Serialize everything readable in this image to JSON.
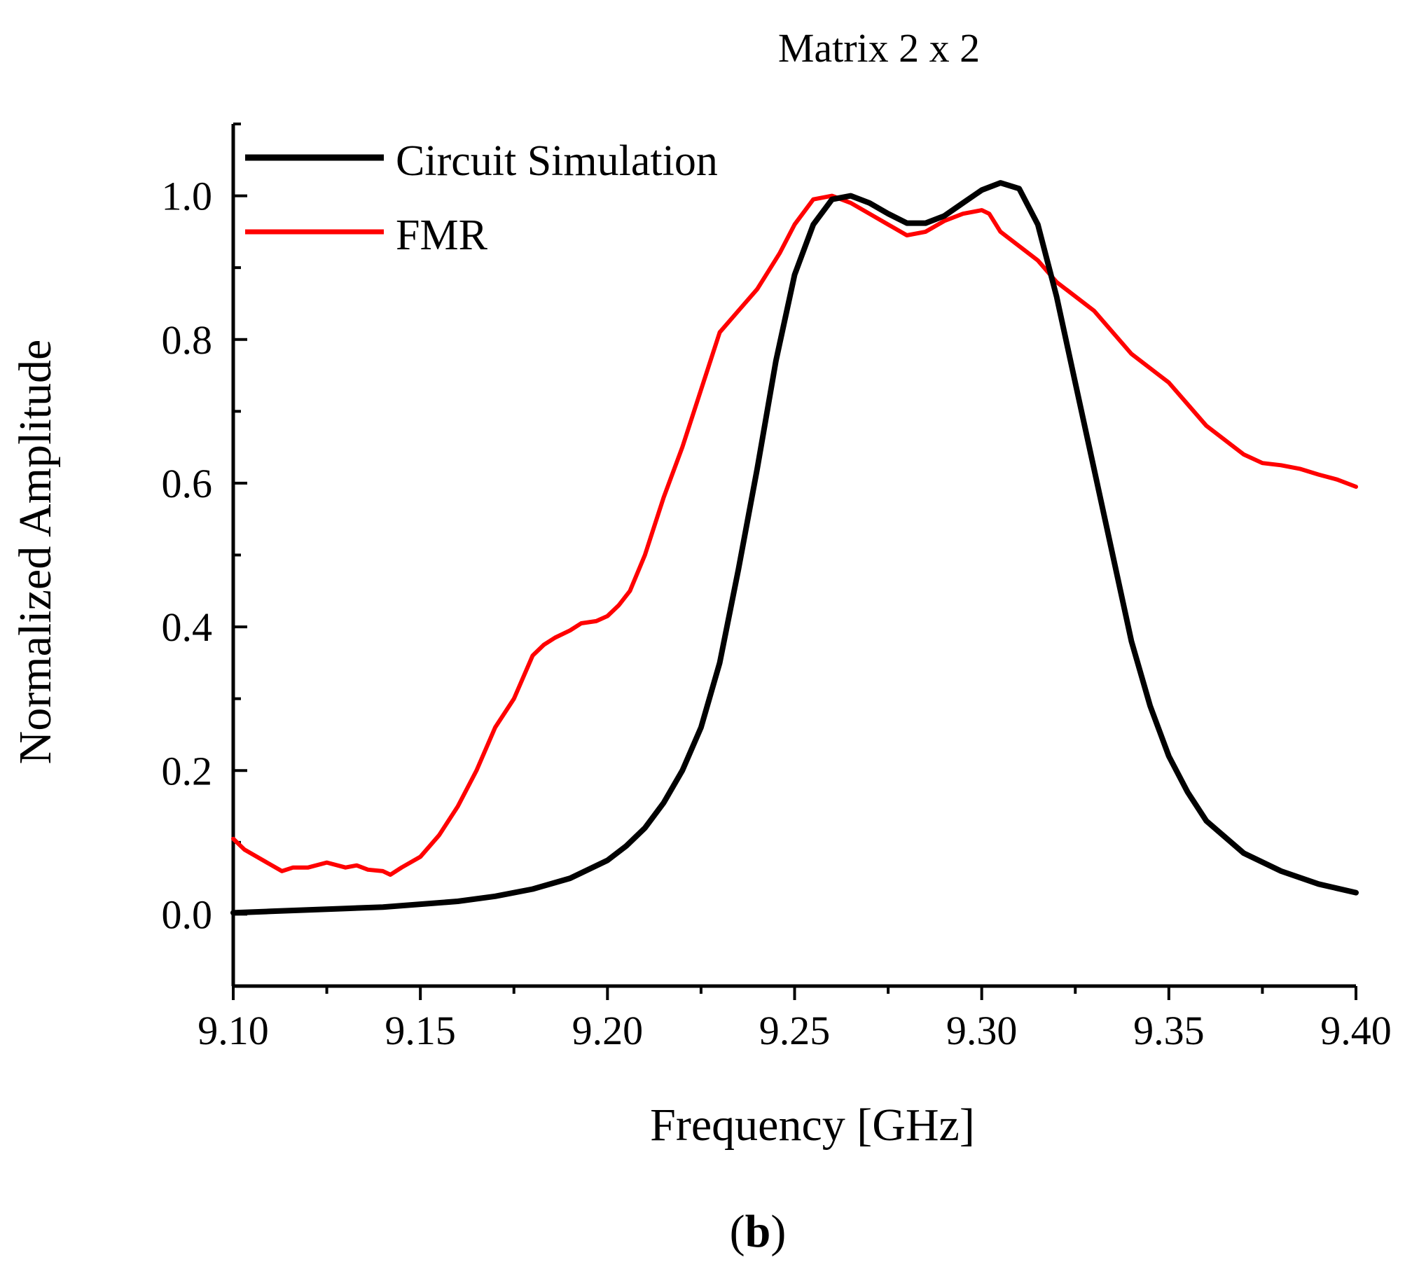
{
  "chart_data": {
    "type": "line",
    "title": "Matrix 2 x 2",
    "xlabel": "Frequency [GHz]",
    "ylabel": "Normalized Amplitude",
    "panel_label": "b",
    "xlim": [
      9.1,
      9.4
    ],
    "ylim": [
      -0.1,
      1.1
    ],
    "x_ticks": [
      9.1,
      9.15,
      9.2,
      9.25,
      9.3,
      9.35,
      9.4
    ],
    "x_tick_labels": [
      "9.10",
      "9.15",
      "9.20",
      "9.25",
      "9.30",
      "9.35",
      "9.40"
    ],
    "x_minor_ticks": [
      9.125,
      9.175,
      9.225,
      9.275,
      9.325,
      9.375
    ],
    "y_ticks": [
      0.0,
      0.2,
      0.4,
      0.6,
      0.8,
      1.0
    ],
    "y_tick_labels": [
      "0.0",
      "0.2",
      "0.4",
      "0.6",
      "0.8",
      "1.0"
    ],
    "y_minor_ticks": [
      -0.1,
      0.1,
      0.3,
      0.5,
      0.7,
      0.9,
      1.1
    ],
    "grid": false,
    "legend_position": "top-left",
    "series": [
      {
        "name": "Circuit Simulation",
        "color": "#000000",
        "x": [
          9.1,
          9.11,
          9.12,
          9.13,
          9.14,
          9.15,
          9.16,
          9.17,
          9.18,
          9.19,
          9.2,
          9.205,
          9.21,
          9.215,
          9.22,
          9.225,
          9.23,
          9.235,
          9.24,
          9.245,
          9.25,
          9.255,
          9.26,
          9.265,
          9.27,
          9.275,
          9.28,
          9.285,
          9.29,
          9.295,
          9.3,
          9.305,
          9.31,
          9.315,
          9.32,
          9.325,
          9.33,
          9.335,
          9.34,
          9.345,
          9.35,
          9.355,
          9.36,
          9.37,
          9.38,
          9.39,
          9.4
        ],
        "y": [
          0.002,
          0.004,
          0.006,
          0.008,
          0.01,
          0.014,
          0.018,
          0.025,
          0.035,
          0.05,
          0.075,
          0.095,
          0.12,
          0.155,
          0.2,
          0.26,
          0.35,
          0.48,
          0.62,
          0.77,
          0.89,
          0.96,
          0.995,
          1.0,
          0.99,
          0.975,
          0.962,
          0.962,
          0.972,
          0.99,
          1.008,
          1.018,
          1.01,
          0.96,
          0.86,
          0.74,
          0.62,
          0.5,
          0.38,
          0.29,
          0.22,
          0.17,
          0.13,
          0.085,
          0.06,
          0.042,
          0.03
        ]
      },
      {
        "name": "FMR",
        "color": "#ff0000",
        "x": [
          9.1,
          9.103,
          9.108,
          9.113,
          9.116,
          9.12,
          9.125,
          9.13,
          9.133,
          9.136,
          9.14,
          9.142,
          9.145,
          9.15,
          9.155,
          9.16,
          9.165,
          9.17,
          9.175,
          9.18,
          9.183,
          9.186,
          9.19,
          9.193,
          9.197,
          9.2,
          9.203,
          9.206,
          9.21,
          9.215,
          9.22,
          9.225,
          9.23,
          9.235,
          9.24,
          9.243,
          9.246,
          9.25,
          9.255,
          9.26,
          9.265,
          9.27,
          9.275,
          9.28,
          9.285,
          9.29,
          9.295,
          9.3,
          9.302,
          9.305,
          9.31,
          9.315,
          9.32,
          9.33,
          9.34,
          9.35,
          9.355,
          9.36,
          9.365,
          9.37,
          9.375,
          9.38,
          9.385,
          9.39,
          9.395,
          9.4
        ],
        "y": [
          0.105,
          0.09,
          0.075,
          0.06,
          0.065,
          0.065,
          0.072,
          0.065,
          0.068,
          0.062,
          0.06,
          0.055,
          0.065,
          0.08,
          0.11,
          0.15,
          0.2,
          0.26,
          0.3,
          0.36,
          0.375,
          0.385,
          0.395,
          0.405,
          0.408,
          0.415,
          0.43,
          0.45,
          0.5,
          0.58,
          0.65,
          0.73,
          0.81,
          0.84,
          0.87,
          0.895,
          0.92,
          0.96,
          0.995,
          1.0,
          0.99,
          0.975,
          0.96,
          0.945,
          0.95,
          0.965,
          0.975,
          0.98,
          0.975,
          0.95,
          0.93,
          0.91,
          0.88,
          0.84,
          0.78,
          0.74,
          0.71,
          0.68,
          0.66,
          0.64,
          0.628,
          0.625,
          0.62,
          0.612,
          0.605,
          0.595
        ]
      }
    ]
  }
}
